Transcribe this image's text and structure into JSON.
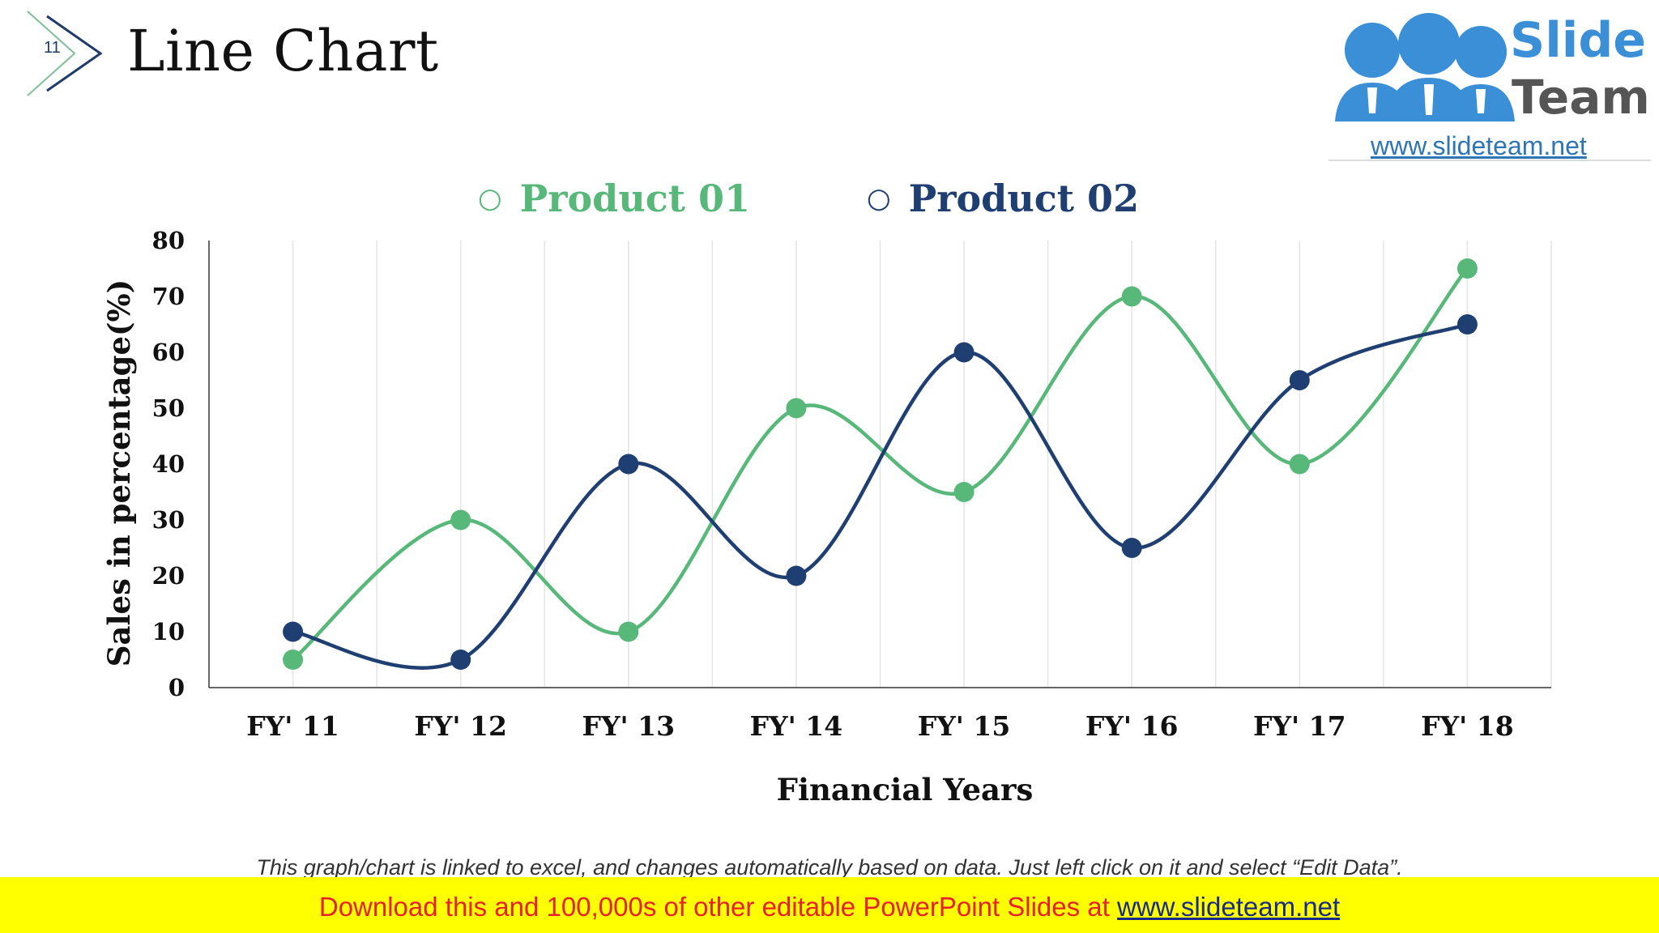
{
  "slide": {
    "number": "11",
    "title": "Line Chart"
  },
  "logo": {
    "line1": "Slide",
    "line2": "Team",
    "url": "www.slideteam.net"
  },
  "colors": {
    "product_01": "#57b87a",
    "product_02": "#1f3f72",
    "banner_bg": "#ffff00",
    "banner_text": "#e8202a",
    "logo_blue": "#3a8fd6"
  },
  "chart_data": {
    "type": "line",
    "categories": [
      "FY' 11",
      "FY' 12",
      "FY' 13",
      "FY' 14",
      "FY' 15",
      "FY' 16",
      "FY' 17",
      "FY' 18"
    ],
    "series": [
      {
        "name": "Product 01",
        "values": [
          5,
          30,
          10,
          50,
          35,
          70,
          40,
          75
        ]
      },
      {
        "name": "Product 02",
        "values": [
          10,
          5,
          40,
          20,
          60,
          25,
          55,
          65
        ]
      }
    ],
    "xlabel": "Financial Years",
    "ylabel": "Sales in percentage(%)",
    "ylim": [
      0,
      80
    ],
    "yticks": [
      0,
      10,
      20,
      30,
      40,
      50,
      60,
      70,
      80
    ],
    "legend_position": "top",
    "grid": "vertical",
    "smooth": true
  },
  "footer": {
    "note": "This graph/chart is linked to excel, and changes automatically based on data. Just left click on it and select “Edit Data”.",
    "banner_prefix": "Download this and 100,000s of other editable PowerPoint Slides at ",
    "banner_link": "www.slideteam.net"
  }
}
